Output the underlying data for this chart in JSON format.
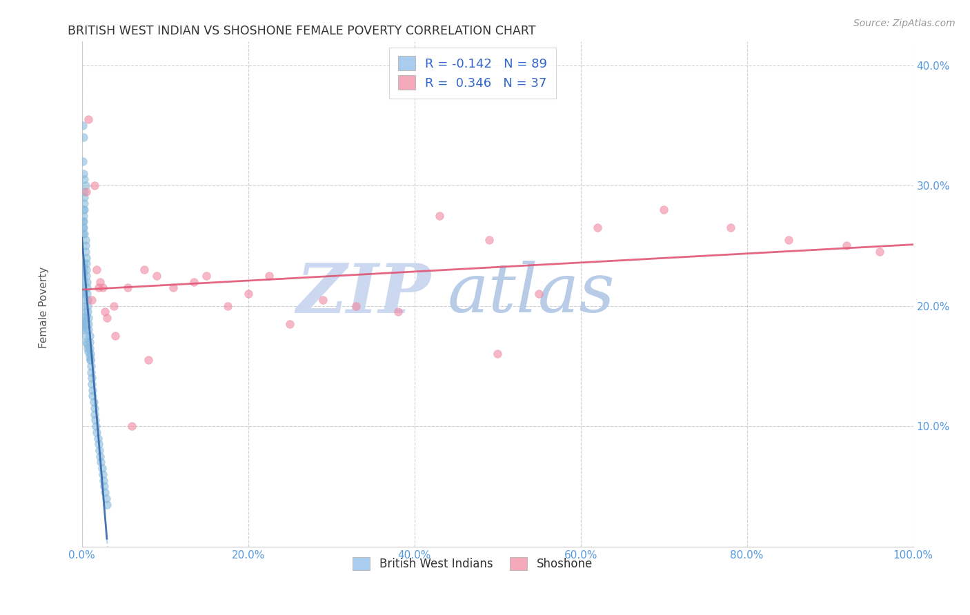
{
  "title": "BRITISH WEST INDIAN VS SHOSHONE FEMALE POVERTY CORRELATION CHART",
  "source": "Source: ZipAtlas.com",
  "ylabel": "Female Poverty",
  "xlim": [
    0,
    1.0
  ],
  "ylim": [
    0,
    0.42
  ],
  "xticks": [
    0.0,
    0.2,
    0.4,
    0.6,
    0.8,
    1.0
  ],
  "xticklabels": [
    "0.0%",
    "20.0%",
    "40.0%",
    "60.0%",
    "80.0%",
    "100.0%"
  ],
  "yticks": [
    0.0,
    0.1,
    0.2,
    0.3,
    0.4
  ],
  "yticklabels": [
    "",
    "10.0%",
    "20.0%",
    "30.0%",
    "40.0%"
  ],
  "blue_R": -0.142,
  "blue_N": 89,
  "pink_R": 0.346,
  "pink_N": 37,
  "blue_legend_color": "#aaccee",
  "pink_legend_color": "#f4aabb",
  "blue_scatter_color": "#88bbdd",
  "pink_scatter_color": "#f088a0",
  "blue_line_color": "#3366aa",
  "blue_dash_color": "#aaccee",
  "pink_line_color": "#e05575",
  "watermark_zip_color": "#ccd8f0",
  "watermark_atlas_color": "#b8cce8",
  "tick_color": "#5599dd",
  "title_color": "#333333",
  "source_color": "#999999",
  "legend_text_color": "#3366cc",
  "blue_points_x": [
    0.001,
    0.001,
    0.001,
    0.002,
    0.002,
    0.002,
    0.002,
    0.003,
    0.003,
    0.003,
    0.003,
    0.004,
    0.004,
    0.004,
    0.005,
    0.005,
    0.005,
    0.005,
    0.006,
    0.006,
    0.006,
    0.007,
    0.007,
    0.007,
    0.008,
    0.008,
    0.008,
    0.009,
    0.009,
    0.009,
    0.01,
    0.01,
    0.011,
    0.011,
    0.012,
    0.012,
    0.013,
    0.013,
    0.014,
    0.015,
    0.015,
    0.016,
    0.017,
    0.018,
    0.019,
    0.02,
    0.021,
    0.022,
    0.023,
    0.024,
    0.025,
    0.026,
    0.027,
    0.028,
    0.029,
    0.03,
    0.002,
    0.003,
    0.004,
    0.005,
    0.006,
    0.007,
    0.008,
    0.009,
    0.01,
    0.001,
    0.002,
    0.003,
    0.004,
    0.005,
    0.001,
    0.002,
    0.003,
    0.004,
    0.001,
    0.002,
    0.003,
    0.001,
    0.002,
    0.001,
    0.002,
    0.001,
    0.001,
    0.001,
    0.001,
    0.001,
    0.002,
    0.002,
    0.002
  ],
  "blue_points_y": [
    0.27,
    0.265,
    0.26,
    0.28,
    0.275,
    0.27,
    0.265,
    0.29,
    0.285,
    0.28,
    0.26,
    0.255,
    0.25,
    0.245,
    0.24,
    0.235,
    0.23,
    0.225,
    0.22,
    0.215,
    0.21,
    0.205,
    0.2,
    0.195,
    0.19,
    0.185,
    0.18,
    0.175,
    0.17,
    0.165,
    0.16,
    0.155,
    0.15,
    0.145,
    0.14,
    0.135,
    0.13,
    0.125,
    0.12,
    0.115,
    0.11,
    0.105,
    0.1,
    0.095,
    0.09,
    0.085,
    0.08,
    0.075,
    0.07,
    0.065,
    0.06,
    0.055,
    0.05,
    0.045,
    0.04,
    0.035,
    0.185,
    0.18,
    0.175,
    0.17,
    0.168,
    0.165,
    0.162,
    0.158,
    0.155,
    0.35,
    0.34,
    0.295,
    0.195,
    0.192,
    0.32,
    0.31,
    0.305,
    0.3,
    0.21,
    0.205,
    0.2,
    0.215,
    0.212,
    0.225,
    0.22,
    0.19,
    0.188,
    0.186,
    0.184,
    0.182,
    0.235,
    0.232,
    0.228
  ],
  "pink_points_x": [
    0.005,
    0.008,
    0.015,
    0.018,
    0.022,
    0.025,
    0.03,
    0.038,
    0.055,
    0.075,
    0.09,
    0.11,
    0.135,
    0.15,
    0.175,
    0.2,
    0.225,
    0.25,
    0.29,
    0.33,
    0.38,
    0.43,
    0.49,
    0.55,
    0.62,
    0.7,
    0.78,
    0.85,
    0.92,
    0.96,
    0.04,
    0.06,
    0.08,
    0.5,
    0.012,
    0.02,
    0.028
  ],
  "pink_points_y": [
    0.295,
    0.355,
    0.3,
    0.23,
    0.22,
    0.215,
    0.19,
    0.2,
    0.215,
    0.23,
    0.225,
    0.215,
    0.22,
    0.225,
    0.2,
    0.21,
    0.225,
    0.185,
    0.205,
    0.2,
    0.195,
    0.275,
    0.255,
    0.21,
    0.265,
    0.28,
    0.265,
    0.255,
    0.25,
    0.245,
    0.175,
    0.1,
    0.155,
    0.16,
    0.205,
    0.215,
    0.195
  ]
}
